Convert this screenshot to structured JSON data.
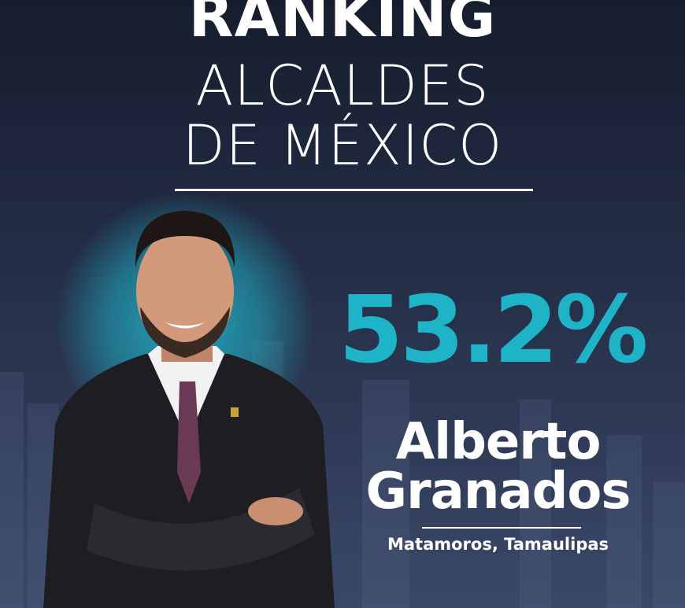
{
  "header": {
    "line1": "RANKING",
    "line2": "ALCALDES",
    "line3": "DE MÉXICO"
  },
  "result": {
    "percentage": "53.2%",
    "name_first": "Alberto",
    "name_last": "Granados",
    "location": "Matamoros, Tamaulipas"
  },
  "colors": {
    "accent": "#1fb3c8",
    "background": "#1c2438",
    "text": "#ffffff"
  }
}
